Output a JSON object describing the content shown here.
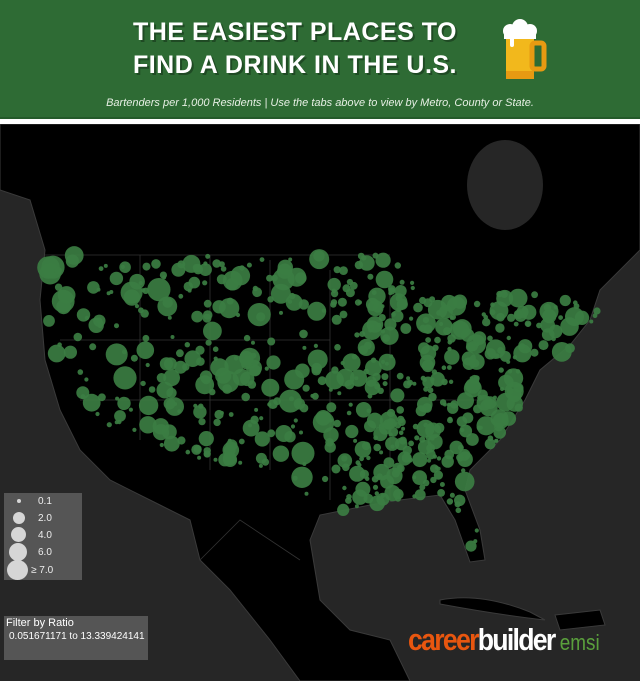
{
  "header": {
    "title_line1": "THE EASIEST PLACES TO",
    "title_line2": "FIND A DRINK IN THE U.S.",
    "subtitle": "Bartenders per 1,000 Residents  |  Use the tabs above to view by Metro, County or State.",
    "icon": "beer-mug-icon",
    "background_color": "#2e6b34"
  },
  "map": {
    "marker_color": "#3b7d42",
    "land_color": "#000000",
    "water_color": "#262626"
  },
  "legend": {
    "items": [
      {
        "label": "0.1",
        "value": 0.1
      },
      {
        "label": "2.0",
        "value": 2.0
      },
      {
        "label": "4.0",
        "value": 4.0
      },
      {
        "label": "6.0",
        "value": 6.0
      },
      {
        "label": "≥ 7.0",
        "value": 7.0
      }
    ]
  },
  "filter": {
    "title": "Filter by Ratio",
    "range": "0.051671171 to 13.339424141"
  },
  "logo": {
    "part1": "career",
    "part2": "builder",
    "part3": "emsi"
  }
}
